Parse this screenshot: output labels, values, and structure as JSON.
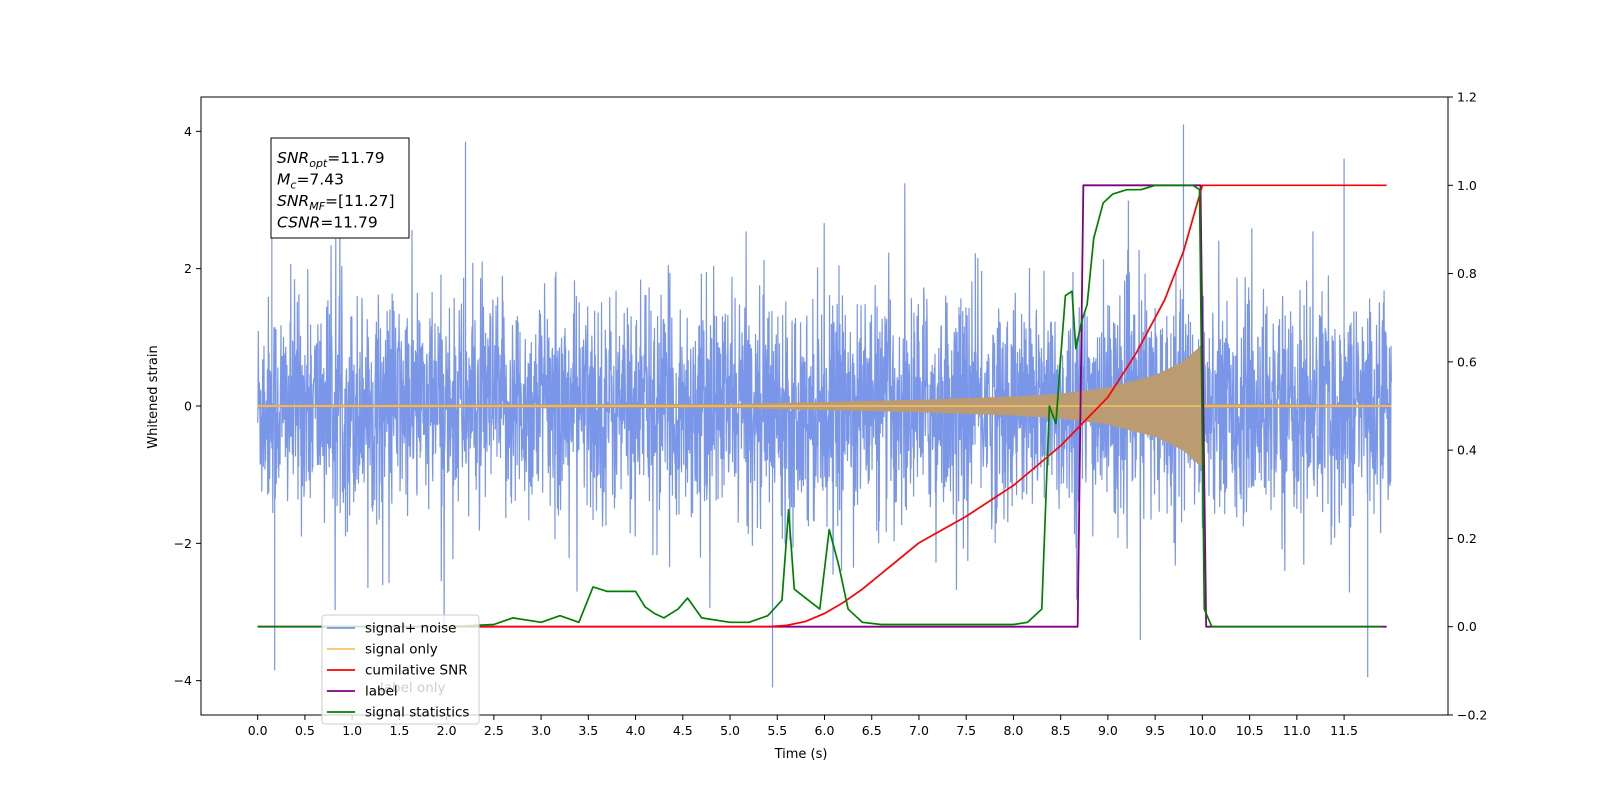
{
  "chart_data": {
    "type": "line",
    "xlabel": "Time (s)",
    "ylabel": "Whitened strain",
    "xlim": [
      -0.6,
      12.6
    ],
    "ylim": [
      -4.5,
      4.5
    ],
    "y2lim": [
      -0.2,
      1.2
    ],
    "x_ticks": [
      "0.0",
      "0.5",
      "1.0",
      "1.5",
      "2.0",
      "2.5",
      "3.0",
      "3.5",
      "4.0",
      "4.5",
      "5.0",
      "5.5",
      "6.0",
      "6.5",
      "7.0",
      "7.5",
      "8.0",
      "8.5",
      "9.0",
      "9.5",
      "10.0",
      "10.5",
      "11.0",
      "11.5"
    ],
    "y_ticks": [
      "4",
      "2",
      "0",
      "−2",
      "−4"
    ],
    "y2_ticks": [
      "1.2",
      "1.0",
      "0.8",
      "0.6",
      "0.4",
      "0.2",
      "0.0",
      "−0.2"
    ],
    "grid": false,
    "legend_position": "lower-left",
    "colors": {
      "noise": "#7a96e8",
      "signal": "#f6c266",
      "signal_fill": "#bb9b72",
      "snr": "#ff0000",
      "label": "#800080",
      "stats": "#008000"
    },
    "annotation": {
      "snr_opt": {
        "name": "SNR",
        "sub": "opt",
        "value": "=11.79"
      },
      "mc": {
        "name": "M",
        "sub": "c",
        "value": "=7.43"
      },
      "snr_mf": {
        "name": "SNR",
        "sub": "MF",
        "value": "=[11.27]"
      },
      "csnr": {
        "name": "CSNR",
        "sub": "",
        "value": "=11.79"
      }
    },
    "series": [
      {
        "name": "signal+ noise",
        "axis": "left",
        "description": "whitened noise, approx. ±1.6 band with spikes to about ±4",
        "x_range": [
          0.0,
          12.0
        ],
        "band": [
          -1.6,
          1.6
        ],
        "peaks": [
          [
            0.15,
            2.6
          ],
          [
            0.18,
            -3.85
          ],
          [
            2.2,
            3.85
          ],
          [
            5.45,
            -4.1
          ],
          [
            9.8,
            4.1
          ],
          [
            11.75,
            -3.95
          ],
          [
            11.5,
            3.6
          ]
        ]
      },
      {
        "name": "signal only",
        "axis": "left",
        "description": "chirp whose envelope grows until merger near t=10.0 s",
        "x": [
          0.0,
          5.0,
          6.0,
          7.0,
          8.0,
          8.5,
          9.0,
          9.5,
          9.8,
          10.0,
          10.02,
          12.0
        ],
        "envelope": [
          0.02,
          0.03,
          0.06,
          0.09,
          0.14,
          0.18,
          0.27,
          0.45,
          0.65,
          0.9,
          0.03,
          0.02
        ]
      },
      {
        "name": "cumilative SNR",
        "axis": "right",
        "x": [
          0.0,
          5.4,
          5.6,
          5.8,
          6.0,
          6.2,
          6.4,
          6.6,
          6.8,
          7.0,
          7.5,
          8.0,
          8.5,
          9.0,
          9.3,
          9.6,
          9.8,
          10.0,
          11.95
        ],
        "y": [
          0.0,
          0.0,
          0.003,
          0.012,
          0.03,
          0.055,
          0.085,
          0.12,
          0.155,
          0.19,
          0.25,
          0.32,
          0.41,
          0.52,
          0.62,
          0.74,
          0.85,
          1.0,
          1.0
        ]
      },
      {
        "name": "label",
        "axis": "right",
        "x": [
          0.0,
          8.68,
          8.74,
          9.98,
          10.04,
          11.95
        ],
        "y": [
          0.0,
          0.0,
          1.0,
          1.0,
          0.0,
          0.0
        ]
      },
      {
        "name": "signal statistics",
        "axis": "right",
        "x": [
          0.0,
          2.0,
          2.5,
          2.7,
          3.0,
          3.2,
          3.4,
          3.55,
          3.7,
          3.85,
          4.0,
          4.1,
          4.2,
          4.3,
          4.45,
          4.55,
          4.7,
          5.0,
          5.2,
          5.4,
          5.55,
          5.62,
          5.68,
          5.8,
          5.95,
          6.05,
          6.15,
          6.25,
          6.4,
          6.6,
          7.0,
          7.5,
          8.0,
          8.15,
          8.3,
          8.38,
          8.45,
          8.5,
          8.55,
          8.62,
          8.66,
          8.72,
          8.78,
          8.85,
          8.95,
          9.05,
          9.2,
          9.35,
          9.5,
          9.6,
          9.7,
          9.8,
          9.9,
          9.97,
          10.02,
          10.1,
          11.9
        ],
        "y": [
          0.0,
          0.0,
          0.005,
          0.02,
          0.01,
          0.025,
          0.01,
          0.09,
          0.08,
          0.08,
          0.08,
          0.045,
          0.03,
          0.02,
          0.04,
          0.065,
          0.02,
          0.01,
          0.01,
          0.025,
          0.06,
          0.265,
          0.085,
          0.065,
          0.04,
          0.22,
          0.14,
          0.04,
          0.01,
          0.005,
          0.005,
          0.005,
          0.005,
          0.01,
          0.04,
          0.5,
          0.46,
          0.61,
          0.75,
          0.76,
          0.63,
          0.69,
          0.73,
          0.88,
          0.96,
          0.98,
          0.99,
          0.99,
          1.0,
          1.0,
          1.0,
          1.0,
          1.0,
          0.99,
          0.04,
          0.0,
          0.0
        ]
      },
      {
        "name": "label only",
        "axis": "right",
        "description": "legend entry only; drawn beneath other elements",
        "x": [],
        "y": []
      }
    ],
    "legend": [
      {
        "label": "signal+ noise",
        "color": "#7a96e8"
      },
      {
        "label": "signal only",
        "color": "#f6c266"
      },
      {
        "label": "cumilative SNR",
        "color": "#ff0000"
      },
      {
        "label": "label",
        "color": "#800080"
      },
      {
        "label": "signal statistics",
        "color": "#008000"
      }
    ],
    "legend_hidden_text": [
      "label only"
    ]
  }
}
